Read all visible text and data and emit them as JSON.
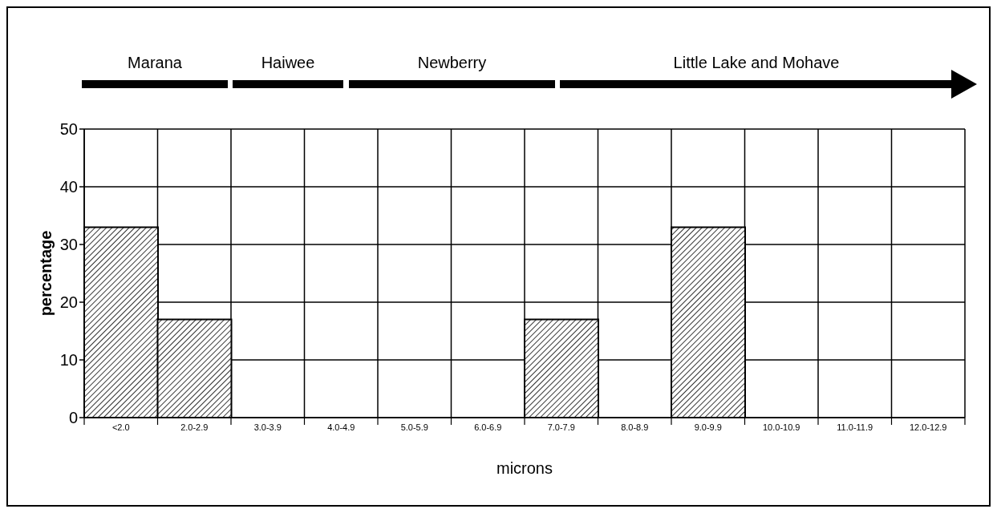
{
  "chart_data": {
    "type": "bar",
    "categories": [
      "<2.0",
      "2.0-2.9",
      "3.0-3.9",
      "4.0-4.9",
      "5.0-5.9",
      "6.0-6.9",
      "7.0-7.9",
      "8.0-8.9",
      "9.0-9.9",
      "10.0-10.9",
      "11.0-11.9",
      "12.0-12.9"
    ],
    "values": [
      33,
      17,
      0,
      0,
      0,
      0,
      17,
      0,
      33,
      0,
      0,
      0
    ],
    "color": "#000000",
    "ylim": [
      0,
      50
    ],
    "yticks": [
      0,
      10,
      20,
      30,
      40,
      50
    ],
    "grid": true,
    "xlabel": "microns",
    "ylabel": "percentage",
    "annotations": [
      "Marana",
      "Haiwee",
      "Newberry",
      "Little Lake and Mohave"
    ]
  }
}
